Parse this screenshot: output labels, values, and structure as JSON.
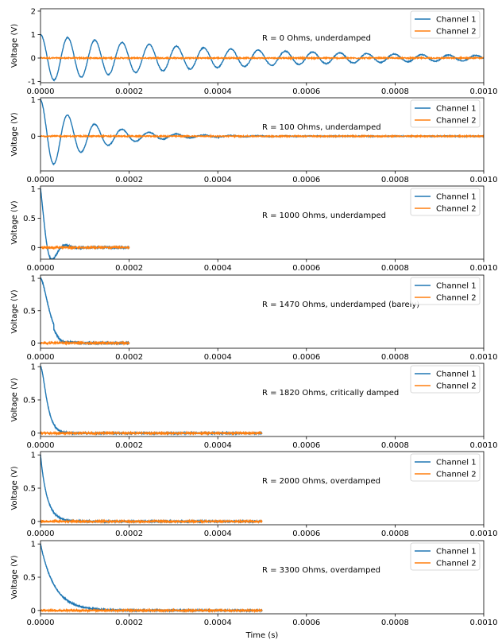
{
  "figure": {
    "xlabel": "Time (s)"
  },
  "chart_data": [
    {
      "type": "line",
      "annotation": "R = 0 Ohms, underdamped",
      "ylabel": "Voltage (V)",
      "xlim": [
        0,
        0.001
      ],
      "ylim": [
        -1.05,
        2.1
      ],
      "yticks": [
        -1,
        0,
        1,
        2
      ],
      "xticks": [
        0,
        0.0002,
        0.0004,
        0.0006,
        0.0008,
        0.001
      ],
      "legend": "top-right",
      "response": {
        "kind": "underdamped",
        "period": 6.14e-05,
        "tau": 0.00045,
        "t_end": 0.001
      },
      "series": [
        {
          "name": "Channel 1",
          "color": "#1f77b4"
        },
        {
          "name": "Channel 2",
          "color": "#ff7f0e"
        }
      ]
    },
    {
      "type": "line",
      "annotation": "R = 100 Ohms, underdamped",
      "ylabel": "Voltage (V)",
      "xlim": [
        0,
        0.001
      ],
      "ylim": [
        -0.95,
        1.05
      ],
      "yticks": [
        0,
        1
      ],
      "xticks": [
        0,
        0.0002,
        0.0004,
        0.0006,
        0.0008,
        0.001
      ],
      "legend": "top-right",
      "response": {
        "kind": "underdamped",
        "period": 6.14e-05,
        "tau": 0.00011,
        "t_end": 0.001
      },
      "series": [
        {
          "name": "Channel 1",
          "color": "#1f77b4"
        },
        {
          "name": "Channel 2",
          "color": "#ff7f0e"
        }
      ]
    },
    {
      "type": "line",
      "annotation": "R = 1000 Ohms, underdamped",
      "ylabel": "Voltage (V)",
      "xlim": [
        0,
        0.001
      ],
      "ylim": [
        -0.2,
        1.05
      ],
      "yticks": [
        0,
        0.5,
        1
      ],
      "xticks": [
        0,
        0.0002,
        0.0004,
        0.0006,
        0.0008,
        0.001
      ],
      "legend": "top-right",
      "response": {
        "kind": "underdamped",
        "period": 6.14e-05,
        "tau": 1.8e-05,
        "t_end": 0.0002
      },
      "series": [
        {
          "name": "Channel 1",
          "color": "#1f77b4"
        },
        {
          "name": "Channel 2",
          "color": "#ff7f0e"
        }
      ]
    },
    {
      "type": "line",
      "annotation": "R = 1470 Ohms, underdamped (barely)",
      "ylabel": "Voltage (V)",
      "xlim": [
        0,
        0.001
      ],
      "ylim": [
        -0.08,
        1.05
      ],
      "yticks": [
        0,
        0.5,
        1
      ],
      "xticks": [
        0,
        0.0002,
        0.0004,
        0.0006,
        0.0008,
        0.001
      ],
      "legend": "top-right",
      "response": {
        "kind": "barely",
        "tau": 1.2e-05,
        "t_end": 0.0002
      },
      "series": [
        {
          "name": "Channel 1",
          "color": "#1f77b4"
        },
        {
          "name": "Channel 2",
          "color": "#ff7f0e"
        }
      ]
    },
    {
      "type": "line",
      "annotation": "R = 1820 Ohms, critically damped",
      "ylabel": "Voltage (V)",
      "xlim": [
        0,
        0.001
      ],
      "ylim": [
        -0.05,
        1.05
      ],
      "yticks": [
        0,
        0.5,
        1
      ],
      "xticks": [
        0,
        0.0002,
        0.0004,
        0.0006,
        0.0008,
        0.001
      ],
      "legend": "top-right",
      "response": {
        "kind": "critical",
        "tau": 8.5e-06,
        "t_end": 0.0005
      },
      "series": [
        {
          "name": "Channel 1",
          "color": "#1f77b4"
        },
        {
          "name": "Channel 2",
          "color": "#ff7f0e"
        }
      ]
    },
    {
      "type": "line",
      "annotation": "R = 2000 Ohms, overdamped",
      "ylabel": "Voltage (V)",
      "xlim": [
        0,
        0.001
      ],
      "ylim": [
        -0.05,
        1.05
      ],
      "yticks": [
        0,
        0.5,
        1
      ],
      "xticks": [
        0,
        0.0002,
        0.0004,
        0.0006,
        0.0008,
        0.001
      ],
      "legend": "top-right",
      "response": {
        "kind": "overdamped",
        "tau": 1.5e-05,
        "t_end": 0.0005
      },
      "series": [
        {
          "name": "Channel 1",
          "color": "#1f77b4"
        },
        {
          "name": "Channel 2",
          "color": "#ff7f0e"
        }
      ]
    },
    {
      "type": "line",
      "annotation": "R = 3300 Ohms, overdamped",
      "ylabel": "Voltage (V)",
      "xlim": [
        0,
        0.001
      ],
      "ylim": [
        -0.05,
        1.05
      ],
      "yticks": [
        0,
        0.5,
        1
      ],
      "xticks": [
        0,
        0.0002,
        0.0004,
        0.0006,
        0.0008,
        0.001
      ],
      "legend": "top-right",
      "response": {
        "kind": "overdamped",
        "tau": 3.2e-05,
        "t_end": 0.0005
      },
      "series": [
        {
          "name": "Channel 1",
          "color": "#1f77b4"
        },
        {
          "name": "Channel 2",
          "color": "#ff7f0e"
        }
      ]
    }
  ]
}
